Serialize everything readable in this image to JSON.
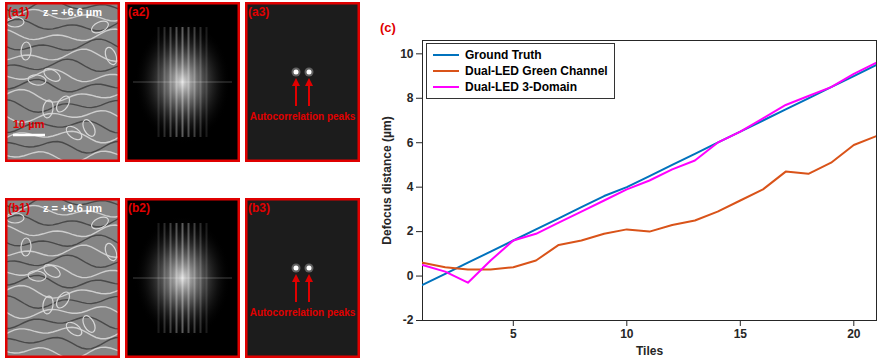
{
  "panels": [
    {
      "label": "(a1)",
      "text": "z = +6.6 µm",
      "scale_bar": "10 µm"
    },
    {
      "label": "(a2)"
    },
    {
      "label": "(a3)",
      "annotation": "Autocorrelation peaks"
    },
    {
      "label": "(b1)",
      "text": "z = +9.6 µm"
    },
    {
      "label": "(b2)"
    },
    {
      "label": "(b3)",
      "annotation": "Autocorrelation peaks"
    }
  ],
  "chart_data": {
    "type": "line",
    "panel_label": "(c)",
    "x_label": "Tiles",
    "y_label": "Defocus distance (µm)",
    "x": [
      1,
      2,
      3,
      4,
      5,
      6,
      7,
      8,
      9,
      10,
      11,
      12,
      13,
      14,
      15,
      16,
      17,
      18,
      19,
      20,
      21
    ],
    "xlim": [
      1,
      21
    ],
    "xticks": [
      5,
      10,
      15,
      20
    ],
    "ylim": [
      -2,
      10.6
    ],
    "yticks": [
      -2,
      0,
      2,
      4,
      6,
      8,
      10
    ],
    "grid": false,
    "legend": "upper left",
    "series": [
      {
        "name": "Ground Truth",
        "color": "#0072bd",
        "values": [
          -0.4,
          0.1,
          0.6,
          1.1,
          1.6,
          2.1,
          2.6,
          3.1,
          3.6,
          4.0,
          4.5,
          5.0,
          5.5,
          6.0,
          6.5,
          7.0,
          7.5,
          8.0,
          8.5,
          9.0,
          9.5
        ]
      },
      {
        "name": "Dual-LED Green Channel",
        "color": "#d95319",
        "values": [
          0.6,
          0.4,
          0.3,
          0.3,
          0.4,
          0.7,
          1.4,
          1.6,
          1.9,
          2.1,
          2.0,
          2.3,
          2.5,
          2.9,
          3.4,
          3.9,
          4.7,
          4.6,
          5.1,
          5.9,
          6.3
        ]
      },
      {
        "name": "Dual-LED 3-Domain",
        "color": "#ff00ff",
        "values": [
          0.5,
          0.2,
          -0.3,
          0.7,
          1.6,
          1.9,
          2.4,
          2.9,
          3.4,
          3.9,
          4.3,
          4.8,
          5.2,
          6.0,
          6.5,
          7.1,
          7.7,
          8.1,
          8.5,
          9.1,
          9.6
        ]
      }
    ]
  }
}
